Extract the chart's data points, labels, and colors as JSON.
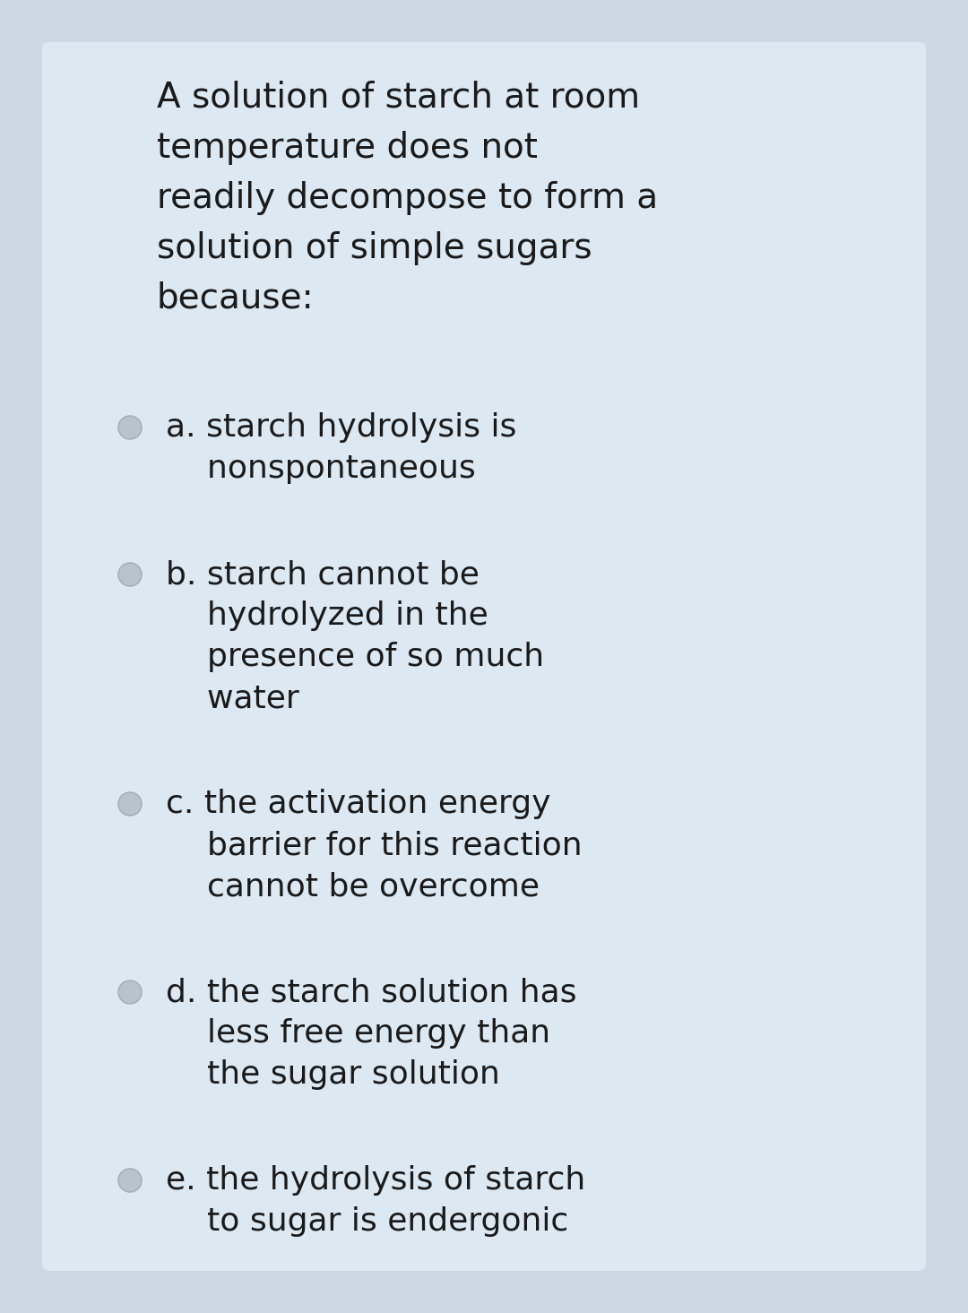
{
  "bg_outer": "#ccd8e3",
  "bg_card": "#dce8f2",
  "text_color": "#1a1a1a",
  "circle_fill": "#b8c4cc",
  "circle_edge": "#a0acb4",
  "question_lines": [
    "A solution of starch at room",
    "temperature does not",
    "readily decompose to form a",
    "solution of simple sugars",
    "because:"
  ],
  "options": [
    [
      "a. starch hydrolysis is",
      "    nonspontaneous"
    ],
    [
      "b. starch cannot be",
      "    hydrolyzed in the",
      "    presence of so much",
      "    water"
    ],
    [
      "c. the activation energy",
      "    barrier for this reaction",
      "    cannot be overcome"
    ],
    [
      "d. the starch solution has",
      "    less free energy than",
      "    the sugar solution"
    ],
    [
      "e. the hydrolysis of starch",
      "    to sugar is endergonic"
    ]
  ],
  "font_size_question": 28,
  "font_size_options": 26,
  "font_family": "DejaVu Sans",
  "fig_width": 10.8,
  "fig_height": 14.65,
  "dpi": 100
}
